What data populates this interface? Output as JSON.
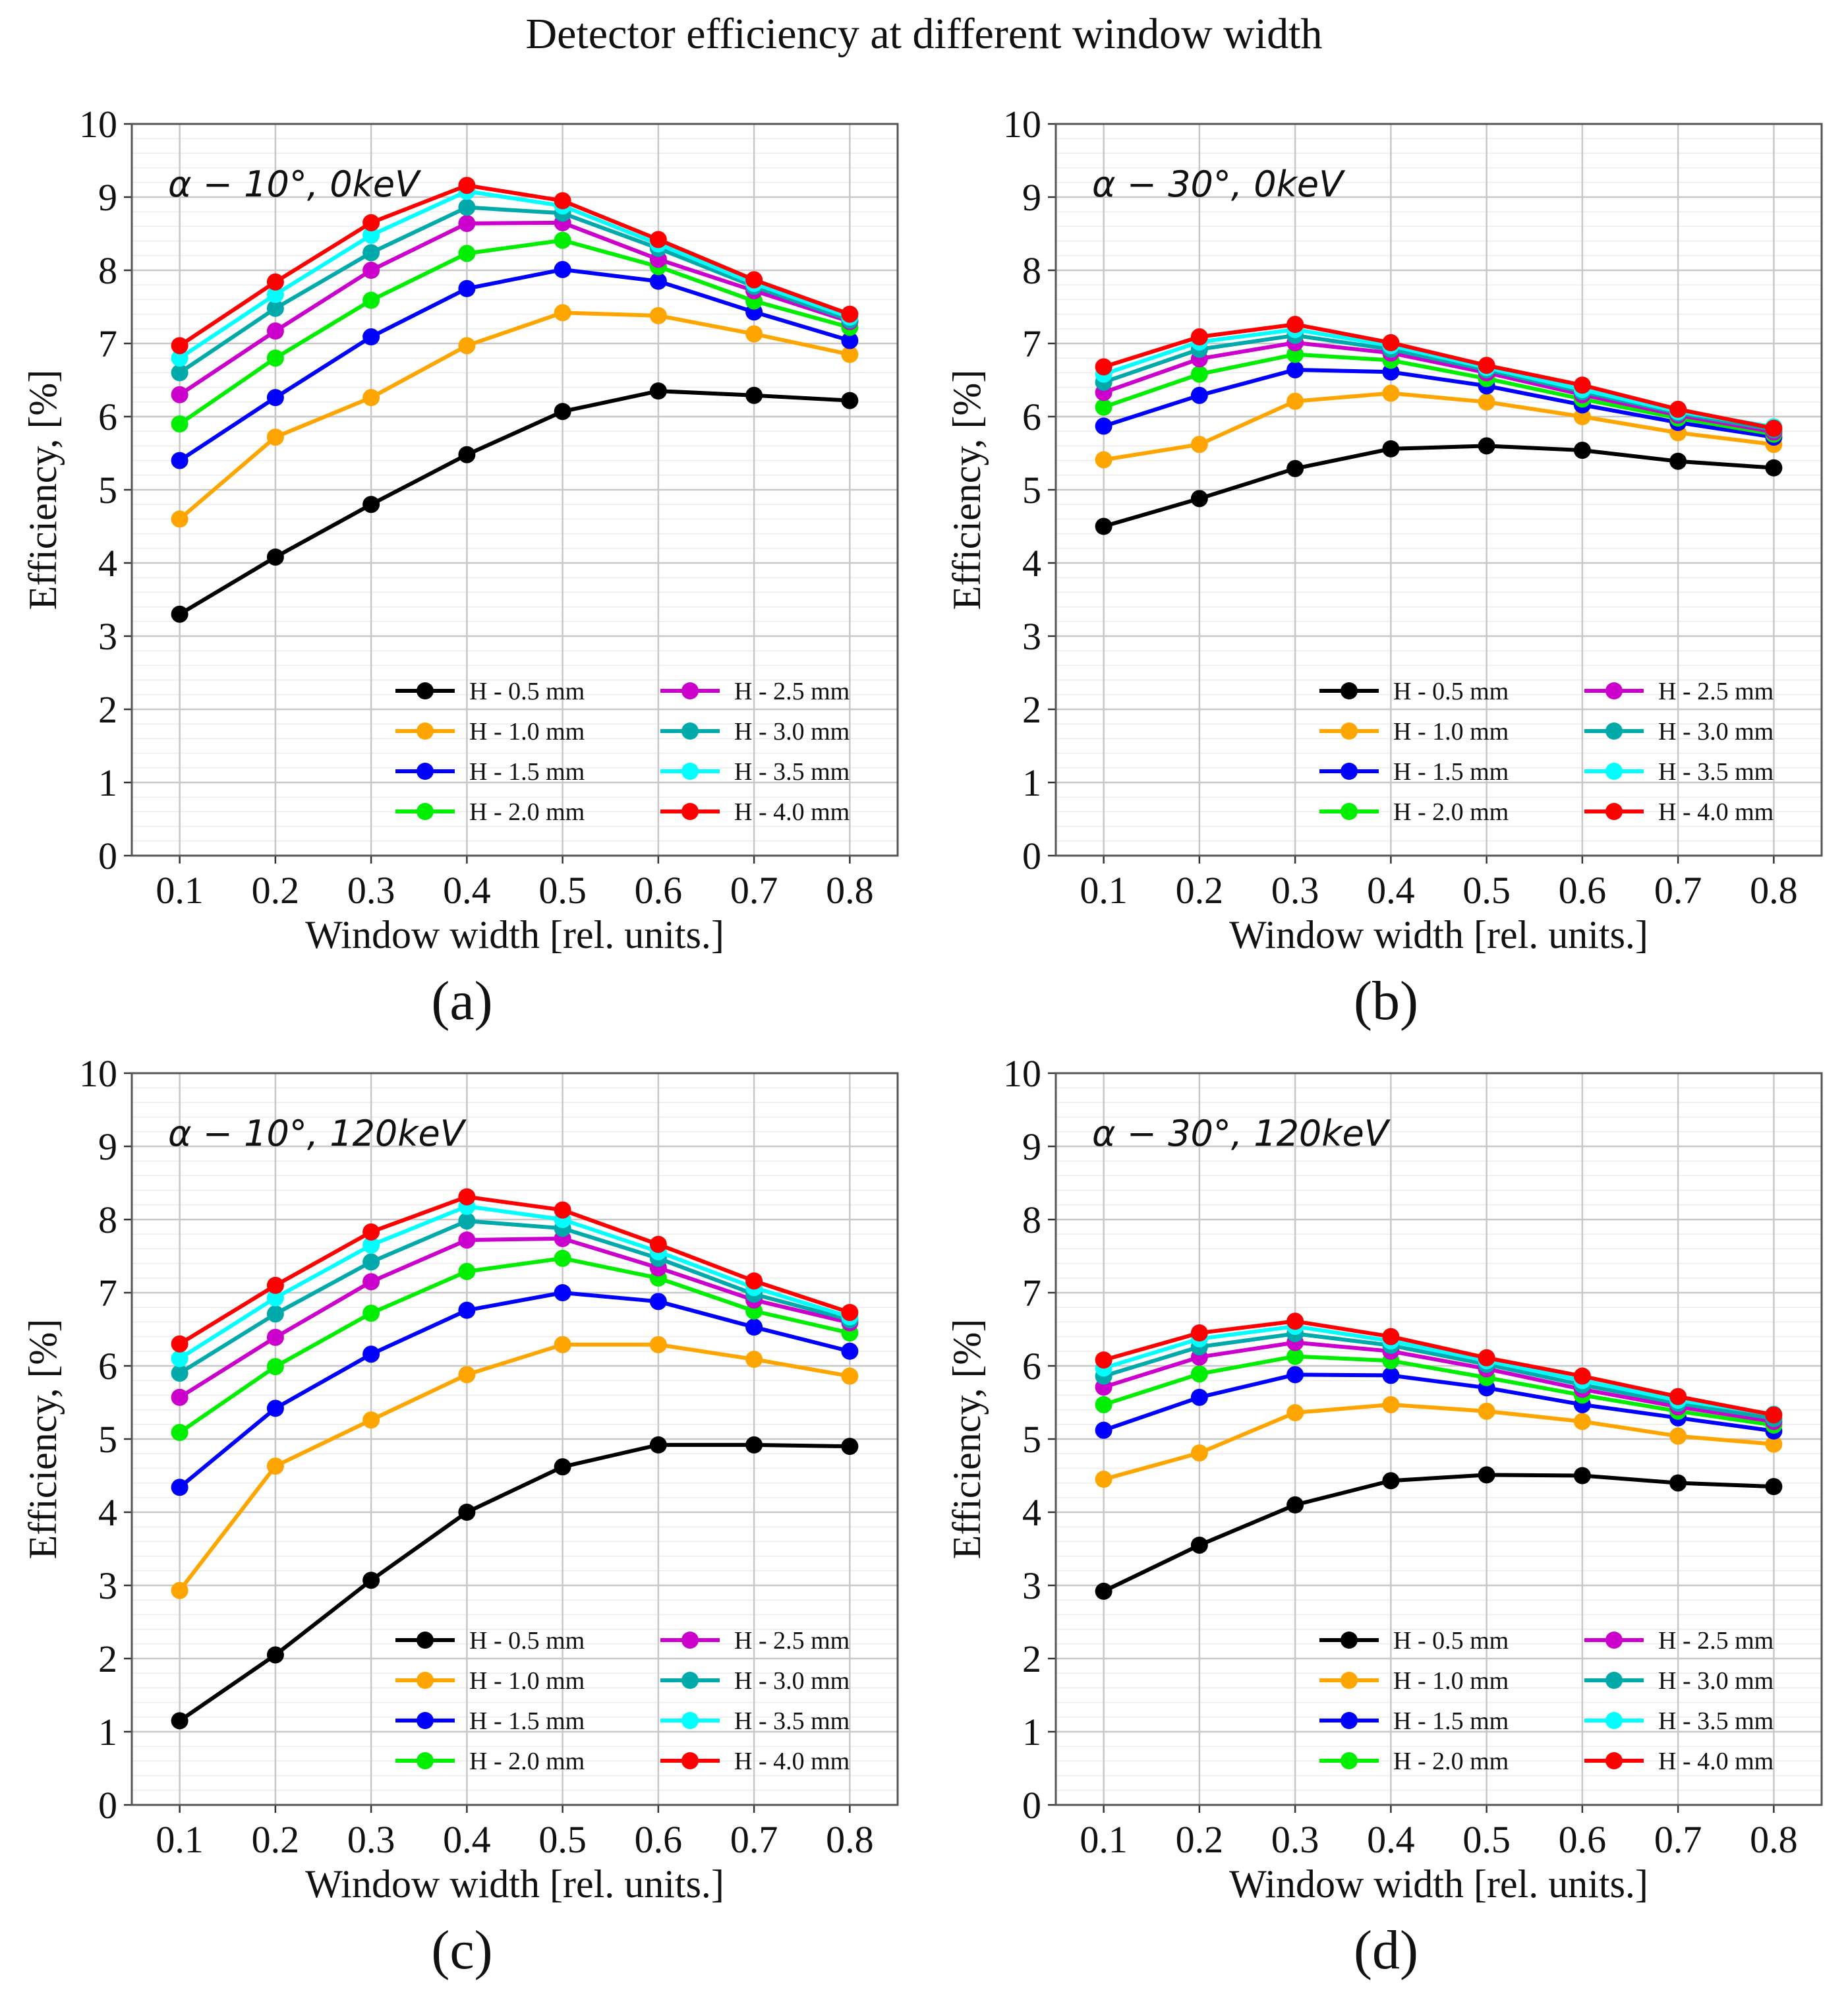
{
  "figure": {
    "title": "Detector efficiency at different window width"
  },
  "chart_data": [
    {
      "type": "line",
      "caption": "(a)",
      "annotation_prefix": "α − 10°, ",
      "annotation_suffix": "0keV",
      "xlabel": "Window width [rel. units.]",
      "ylabel": "Efficiency, [%]",
      "xlim": [
        0.05,
        0.85
      ],
      "ylim": [
        0,
        10
      ],
      "grid": true,
      "legend_position": "lower-right",
      "x": [
        0.1,
        0.2,
        0.3,
        0.4,
        0.5,
        0.6,
        0.7,
        0.8
      ],
      "x_tick_labels": [
        "0.1",
        "0.2",
        "0.3",
        "0.4",
        "0.5",
        "0.6",
        "0.7",
        "0.8"
      ],
      "y_tick_labels": [
        "0",
        "1",
        "2",
        "3",
        "4",
        "5",
        "6",
        "7",
        "8",
        "9",
        "10"
      ],
      "series": [
        {
          "name": "H - 0.5 mm",
          "color": "#000000",
          "values": [
            3.3,
            4.08,
            4.8,
            5.48,
            6.07,
            6.35,
            6.29,
            6.22
          ]
        },
        {
          "name": "H - 1.0 mm",
          "color": "#FFA500",
          "values": [
            4.6,
            5.72,
            6.26,
            6.97,
            7.42,
            7.38,
            7.13,
            6.85
          ]
        },
        {
          "name": "H - 1.5 mm",
          "color": "#0000FF",
          "values": [
            5.4,
            6.26,
            7.09,
            7.75,
            8.01,
            7.85,
            7.43,
            7.04
          ]
        },
        {
          "name": "H - 2.0 mm",
          "color": "#00EE00",
          "values": [
            5.9,
            6.8,
            7.59,
            8.23,
            8.41,
            8.05,
            7.58,
            7.22
          ]
        },
        {
          "name": "H - 2.5 mm",
          "color": "#CC00CC",
          "values": [
            6.3,
            7.17,
            8.0,
            8.64,
            8.65,
            8.15,
            7.72,
            7.3
          ]
        },
        {
          "name": "H - 3.0 mm",
          "color": "#00AAAA",
          "values": [
            6.6,
            7.48,
            8.24,
            8.86,
            8.78,
            8.3,
            7.78,
            7.32
          ]
        },
        {
          "name": "H - 3.5 mm",
          "color": "#00FFFF",
          "values": [
            6.8,
            7.67,
            8.48,
            9.08,
            8.88,
            8.36,
            7.82,
            7.36
          ]
        },
        {
          "name": "H - 4.0 mm",
          "color": "#FF0000",
          "values": [
            6.97,
            7.84,
            8.65,
            9.16,
            8.95,
            8.42,
            7.87,
            7.4
          ]
        }
      ]
    },
    {
      "type": "line",
      "caption": "(b)",
      "annotation_prefix": "α − 30°, ",
      "annotation_suffix": "0keV",
      "xlabel": "Window width [rel. units.]",
      "ylabel": "Efficiency, [%]",
      "xlim": [
        0.05,
        0.85
      ],
      "ylim": [
        0,
        10
      ],
      "grid": true,
      "legend_position": "lower-right",
      "x": [
        0.1,
        0.2,
        0.3,
        0.4,
        0.5,
        0.6,
        0.7,
        0.8
      ],
      "x_tick_labels": [
        "0.1",
        "0.2",
        "0.3",
        "0.4",
        "0.5",
        "0.6",
        "0.7",
        "0.8"
      ],
      "y_tick_labels": [
        "0",
        "1",
        "2",
        "3",
        "4",
        "5",
        "6",
        "7",
        "8",
        "9",
        "10"
      ],
      "series": [
        {
          "name": "H - 0.5 mm",
          "color": "#000000",
          "values": [
            4.5,
            4.88,
            5.29,
            5.56,
            5.6,
            5.54,
            5.39,
            5.3
          ]
        },
        {
          "name": "H - 1.0 mm",
          "color": "#FFA500",
          "values": [
            5.41,
            5.62,
            6.21,
            6.32,
            6.2,
            6.0,
            5.78,
            5.62
          ]
        },
        {
          "name": "H - 1.5 mm",
          "color": "#0000FF",
          "values": [
            5.87,
            6.29,
            6.64,
            6.61,
            6.42,
            6.16,
            5.92,
            5.72
          ]
        },
        {
          "name": "H - 2.0 mm",
          "color": "#00EE00",
          "values": [
            6.13,
            6.58,
            6.85,
            6.77,
            6.52,
            6.24,
            5.98,
            5.76
          ]
        },
        {
          "name": "H - 2.5 mm",
          "color": "#CC00CC",
          "values": [
            6.33,
            6.79,
            7.01,
            6.87,
            6.6,
            6.3,
            6.02,
            5.79
          ]
        },
        {
          "name": "H - 3.0 mm",
          "color": "#00AAAA",
          "values": [
            6.47,
            6.92,
            7.11,
            6.92,
            6.64,
            6.34,
            6.05,
            5.82
          ]
        },
        {
          "name": "H - 3.5 mm",
          "color": "#00FFFF",
          "values": [
            6.58,
            7.02,
            7.19,
            6.97,
            6.67,
            6.37,
            6.07,
            5.86
          ]
        },
        {
          "name": "H - 4.0 mm",
          "color": "#FF0000",
          "values": [
            6.68,
            7.09,
            7.26,
            7.01,
            6.7,
            6.43,
            6.1,
            5.84
          ]
        }
      ]
    },
    {
      "type": "line",
      "caption": "(c)",
      "annotation_prefix": "α − 10°, ",
      "annotation_suffix": "120keV",
      "xlabel": "Window width [rel. units.]",
      "ylabel": "Efficiency, [%]",
      "xlim": [
        0.05,
        0.85
      ],
      "ylim": [
        0,
        10
      ],
      "grid": true,
      "legend_position": "lower-right",
      "x": [
        0.1,
        0.2,
        0.3,
        0.4,
        0.5,
        0.6,
        0.7,
        0.8
      ],
      "x_tick_labels": [
        "0.1",
        "0.2",
        "0.3",
        "0.4",
        "0.5",
        "0.6",
        "0.7",
        "0.8"
      ],
      "y_tick_labels": [
        "0",
        "1",
        "2",
        "3",
        "4",
        "5",
        "6",
        "7",
        "8",
        "9",
        "10"
      ],
      "series": [
        {
          "name": "H - 0.5 mm",
          "color": "#000000",
          "values": [
            1.15,
            2.05,
            3.07,
            4.0,
            4.62,
            4.92,
            4.92,
            4.9
          ]
        },
        {
          "name": "H - 1.0 mm",
          "color": "#FFA500",
          "values": [
            2.93,
            4.63,
            5.26,
            5.88,
            6.29,
            6.29,
            6.09,
            5.86
          ]
        },
        {
          "name": "H - 1.5 mm",
          "color": "#0000FF",
          "values": [
            4.34,
            5.42,
            6.16,
            6.76,
            7.0,
            6.88,
            6.53,
            6.2
          ]
        },
        {
          "name": "H - 2.0 mm",
          "color": "#00EE00",
          "values": [
            5.09,
            5.99,
            6.72,
            7.29,
            7.47,
            7.2,
            6.75,
            6.45
          ]
        },
        {
          "name": "H - 2.5 mm",
          "color": "#CC00CC",
          "values": [
            5.57,
            6.39,
            7.15,
            7.72,
            7.74,
            7.34,
            6.9,
            6.59
          ]
        },
        {
          "name": "H - 3.0 mm",
          "color": "#00AAAA",
          "values": [
            5.9,
            6.71,
            7.42,
            7.98,
            7.88,
            7.47,
            6.98,
            6.63
          ]
        },
        {
          "name": "H - 3.5 mm",
          "color": "#00FFFF",
          "values": [
            6.1,
            6.93,
            7.65,
            8.18,
            8.0,
            7.56,
            7.07,
            6.67
          ]
        },
        {
          "name": "H - 4.0 mm",
          "color": "#FF0000",
          "values": [
            6.3,
            7.1,
            7.83,
            8.31,
            8.13,
            7.66,
            7.16,
            6.73
          ]
        }
      ]
    },
    {
      "type": "line",
      "caption": "(d)",
      "annotation_prefix": "α − 30°, ",
      "annotation_suffix": "120keV",
      "xlabel": "Window width [rel. units.]",
      "ylabel": "Efficiency, [%]",
      "xlim": [
        0.05,
        0.85
      ],
      "ylim": [
        0,
        10
      ],
      "grid": true,
      "legend_position": "lower-right",
      "x": [
        0.1,
        0.2,
        0.3,
        0.4,
        0.5,
        0.6,
        0.7,
        0.8
      ],
      "x_tick_labels": [
        "0.1",
        "0.2",
        "0.3",
        "0.4",
        "0.5",
        "0.6",
        "0.7",
        "0.8"
      ],
      "y_tick_labels": [
        "0",
        "1",
        "2",
        "3",
        "4",
        "5",
        "6",
        "7",
        "8",
        "9",
        "10"
      ],
      "series": [
        {
          "name": "H - 0.5 mm",
          "color": "#000000",
          "values": [
            2.92,
            3.55,
            4.1,
            4.43,
            4.51,
            4.5,
            4.4,
            4.35
          ]
        },
        {
          "name": "H - 1.0 mm",
          "color": "#FFA500",
          "values": [
            4.45,
            4.81,
            5.36,
            5.47,
            5.38,
            5.24,
            5.04,
            4.93
          ]
        },
        {
          "name": "H - 1.5 mm",
          "color": "#0000FF",
          "values": [
            5.12,
            5.57,
            5.88,
            5.87,
            5.7,
            5.47,
            5.29,
            5.11
          ]
        },
        {
          "name": "H - 2.0 mm",
          "color": "#00EE00",
          "values": [
            5.47,
            5.89,
            6.13,
            6.07,
            5.84,
            5.6,
            5.38,
            5.19
          ]
        },
        {
          "name": "H - 2.5 mm",
          "color": "#CC00CC",
          "values": [
            5.71,
            6.12,
            6.32,
            6.2,
            5.96,
            5.68,
            5.44,
            5.24
          ]
        },
        {
          "name": "H - 3.0 mm",
          "color": "#00AAAA",
          "values": [
            5.86,
            6.26,
            6.44,
            6.28,
            6.02,
            5.74,
            5.49,
            5.28
          ]
        },
        {
          "name": "H - 3.5 mm",
          "color": "#00FFFF",
          "values": [
            5.97,
            6.37,
            6.54,
            6.34,
            6.07,
            5.8,
            5.53,
            5.34
          ]
        },
        {
          "name": "H - 4.0 mm",
          "color": "#FF0000",
          "values": [
            6.08,
            6.45,
            6.61,
            6.4,
            6.11,
            5.86,
            5.58,
            5.33
          ]
        }
      ]
    }
  ]
}
